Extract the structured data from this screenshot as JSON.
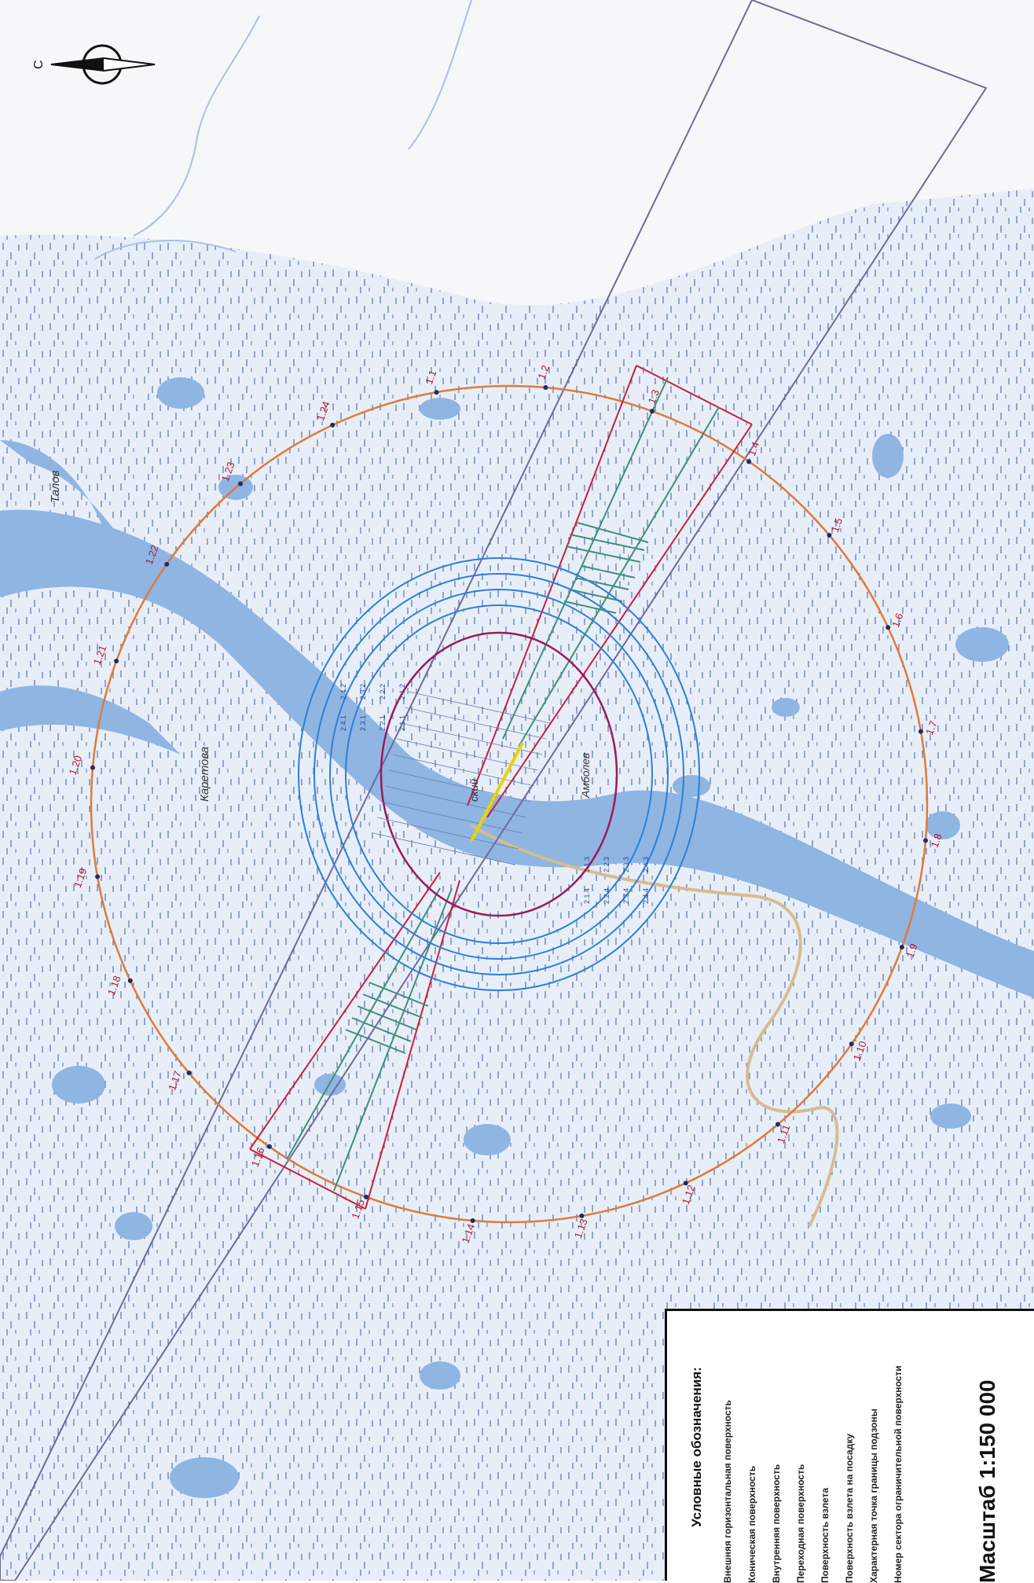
{
  "map": {
    "north_label": "С",
    "river_labels": [
      "Талов",
      "Каретова"
    ],
    "place_labels": [
      "ский",
      "Амболев"
    ],
    "outer_points": [
      "1.1",
      "1.2",
      "1.3",
      "1.4",
      "1.5",
      "1.6",
      "1.7",
      "1.8",
      "1.9",
      "1.10",
      "1.11",
      "1.12",
      "1.13",
      "1.14",
      "1.15",
      "1.16",
      "1.17",
      "1.18",
      "1.19",
      "1.20",
      "1.21",
      "1.22",
      "1.23",
      "1.24"
    ],
    "inner_sector_labels_top": [
      "2.4.1",
      "2.3.1",
      "2.2.1",
      "2.1.1",
      "2.4.2",
      "2.3.2",
      "2.2.2",
      "2.1.2"
    ],
    "inner_sector_labels_bottom": [
      "2.1.3",
      "2.2.3",
      "2.3.3",
      "2.4.3",
      "2.1.4",
      "2.2.4",
      "2.3.4",
      "2.4.4"
    ],
    "colors": {
      "water": "#8fb5e3",
      "marsh_dash": "#4f6fa8",
      "outer_horizontal": "#e07a36",
      "conical": "#2f7fd6",
      "inner_horizontal": "#9a1a5b",
      "approach": "#c91f3b",
      "takeoff": "#3f8f76",
      "sector": "#6e6a9a"
    }
  },
  "legend": {
    "title": "Условные обозначения:",
    "items": [
      "Внешняя горизонтальная поверхность",
      "Коническая поверхность",
      "Внутренняя поверхность",
      "Переходная поверхность",
      "Поверхность взлета",
      "Поверхность взлета на посадку",
      "Характерная точка границы подзоны",
      "Номер сектора ограничительной поверхности"
    ],
    "scale": "Масштаб 1:150 000"
  }
}
